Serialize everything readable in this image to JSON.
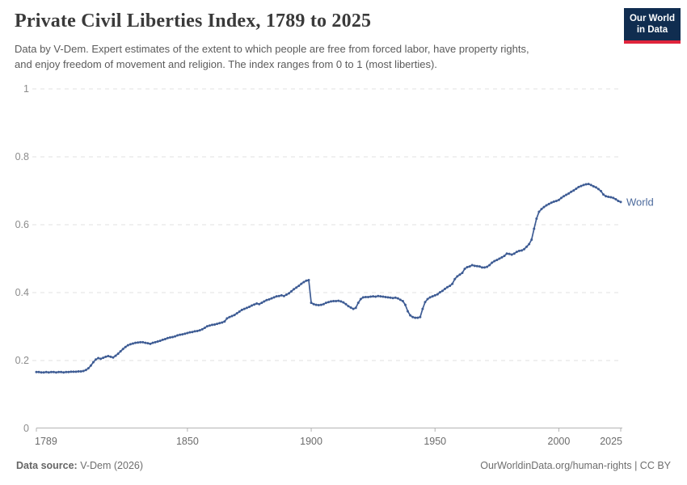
{
  "header": {
    "title": "Private Civil Liberties Index, 1789 to 2025",
    "subtitle_lines": [
      "Data by V-Dem. Expert estimates of the extent to which people are free from forced labor, have property rights,",
      "and enjoy freedom of movement and religion. The index ranges from 0 to 1 (most liberties)."
    ]
  },
  "logo": {
    "line1": "Our World",
    "line2": "in Data",
    "bg_color": "#102d50",
    "accent_color": "#e0243c"
  },
  "chart_data": {
    "type": "line",
    "title": "Private Civil Liberties Index, 1789 to 2025",
    "xlabel": "",
    "ylabel": "",
    "ylim": [
      0,
      1
    ],
    "yticks": [
      0,
      0.2,
      0.4,
      0.6,
      0.8,
      1
    ],
    "ytick_labels": [
      "0",
      "0.2",
      "0.4",
      "0.6",
      "0.8",
      "1"
    ],
    "xticks": [
      1789,
      1850,
      1900,
      1950,
      2000,
      2025
    ],
    "grid": "horizontal-dashed",
    "legend": "end-of-line-label",
    "year_start": 1789,
    "year_end": 2025,
    "series": [
      {
        "name": "World",
        "color": "#3e5c94",
        "label_color": "#4c6a9c",
        "values": [
          0.166,
          0.166,
          0.165,
          0.165,
          0.166,
          0.165,
          0.166,
          0.166,
          0.165,
          0.166,
          0.166,
          0.165,
          0.166,
          0.166,
          0.167,
          0.167,
          0.167,
          0.168,
          0.168,
          0.169,
          0.172,
          0.177,
          0.185,
          0.195,
          0.203,
          0.207,
          0.205,
          0.208,
          0.211,
          0.213,
          0.211,
          0.209,
          0.214,
          0.22,
          0.227,
          0.234,
          0.24,
          0.245,
          0.248,
          0.25,
          0.252,
          0.253,
          0.254,
          0.254,
          0.252,
          0.251,
          0.249,
          0.252,
          0.254,
          0.256,
          0.258,
          0.261,
          0.263,
          0.266,
          0.268,
          0.269,
          0.271,
          0.274,
          0.276,
          0.277,
          0.279,
          0.281,
          0.283,
          0.284,
          0.286,
          0.287,
          0.289,
          0.292,
          0.296,
          0.301,
          0.303,
          0.305,
          0.306,
          0.308,
          0.31,
          0.312,
          0.315,
          0.324,
          0.328,
          0.331,
          0.334,
          0.339,
          0.344,
          0.349,
          0.352,
          0.355,
          0.358,
          0.362,
          0.365,
          0.368,
          0.366,
          0.37,
          0.374,
          0.378,
          0.38,
          0.383,
          0.386,
          0.389,
          0.39,
          0.392,
          0.39,
          0.394,
          0.398,
          0.404,
          0.41,
          0.415,
          0.42,
          0.426,
          0.431,
          0.435,
          0.437,
          0.37,
          0.366,
          0.364,
          0.363,
          0.364,
          0.366,
          0.37,
          0.372,
          0.374,
          0.375,
          0.375,
          0.376,
          0.374,
          0.371,
          0.366,
          0.36,
          0.356,
          0.352,
          0.355,
          0.37,
          0.381,
          0.386,
          0.387,
          0.387,
          0.388,
          0.389,
          0.388,
          0.39,
          0.389,
          0.388,
          0.387,
          0.386,
          0.385,
          0.384,
          0.385,
          0.383,
          0.379,
          0.375,
          0.364,
          0.345,
          0.333,
          0.328,
          0.326,
          0.326,
          0.328,
          0.352,
          0.372,
          0.381,
          0.386,
          0.389,
          0.392,
          0.395,
          0.401,
          0.405,
          0.411,
          0.416,
          0.42,
          0.426,
          0.44,
          0.448,
          0.453,
          0.458,
          0.47,
          0.475,
          0.477,
          0.481,
          0.479,
          0.478,
          0.477,
          0.474,
          0.474,
          0.476,
          0.481,
          0.488,
          0.493,
          0.496,
          0.5,
          0.504,
          0.508,
          0.515,
          0.514,
          0.512,
          0.515,
          0.52,
          0.523,
          0.524,
          0.528,
          0.535,
          0.543,
          0.556,
          0.588,
          0.618,
          0.638,
          0.646,
          0.652,
          0.657,
          0.661,
          0.665,
          0.668,
          0.67,
          0.673,
          0.679,
          0.684,
          0.688,
          0.692,
          0.697,
          0.701,
          0.706,
          0.711,
          0.714,
          0.717,
          0.719,
          0.72,
          0.717,
          0.713,
          0.71,
          0.705,
          0.699,
          0.689,
          0.684,
          0.682,
          0.681,
          0.679,
          0.675,
          0.67,
          0.667
        ]
      }
    ],
    "axis_color": "#b3b3b3",
    "gridline_color": "#e2e2e2",
    "ytick_label_color": "#8c8c8c",
    "xtick_label_color": "#6b6b6b"
  },
  "footer": {
    "source_label": "Data source:",
    "source_value": " V-Dem (2026)",
    "credit": "OurWorldinData.org/human-rights | CC BY"
  }
}
